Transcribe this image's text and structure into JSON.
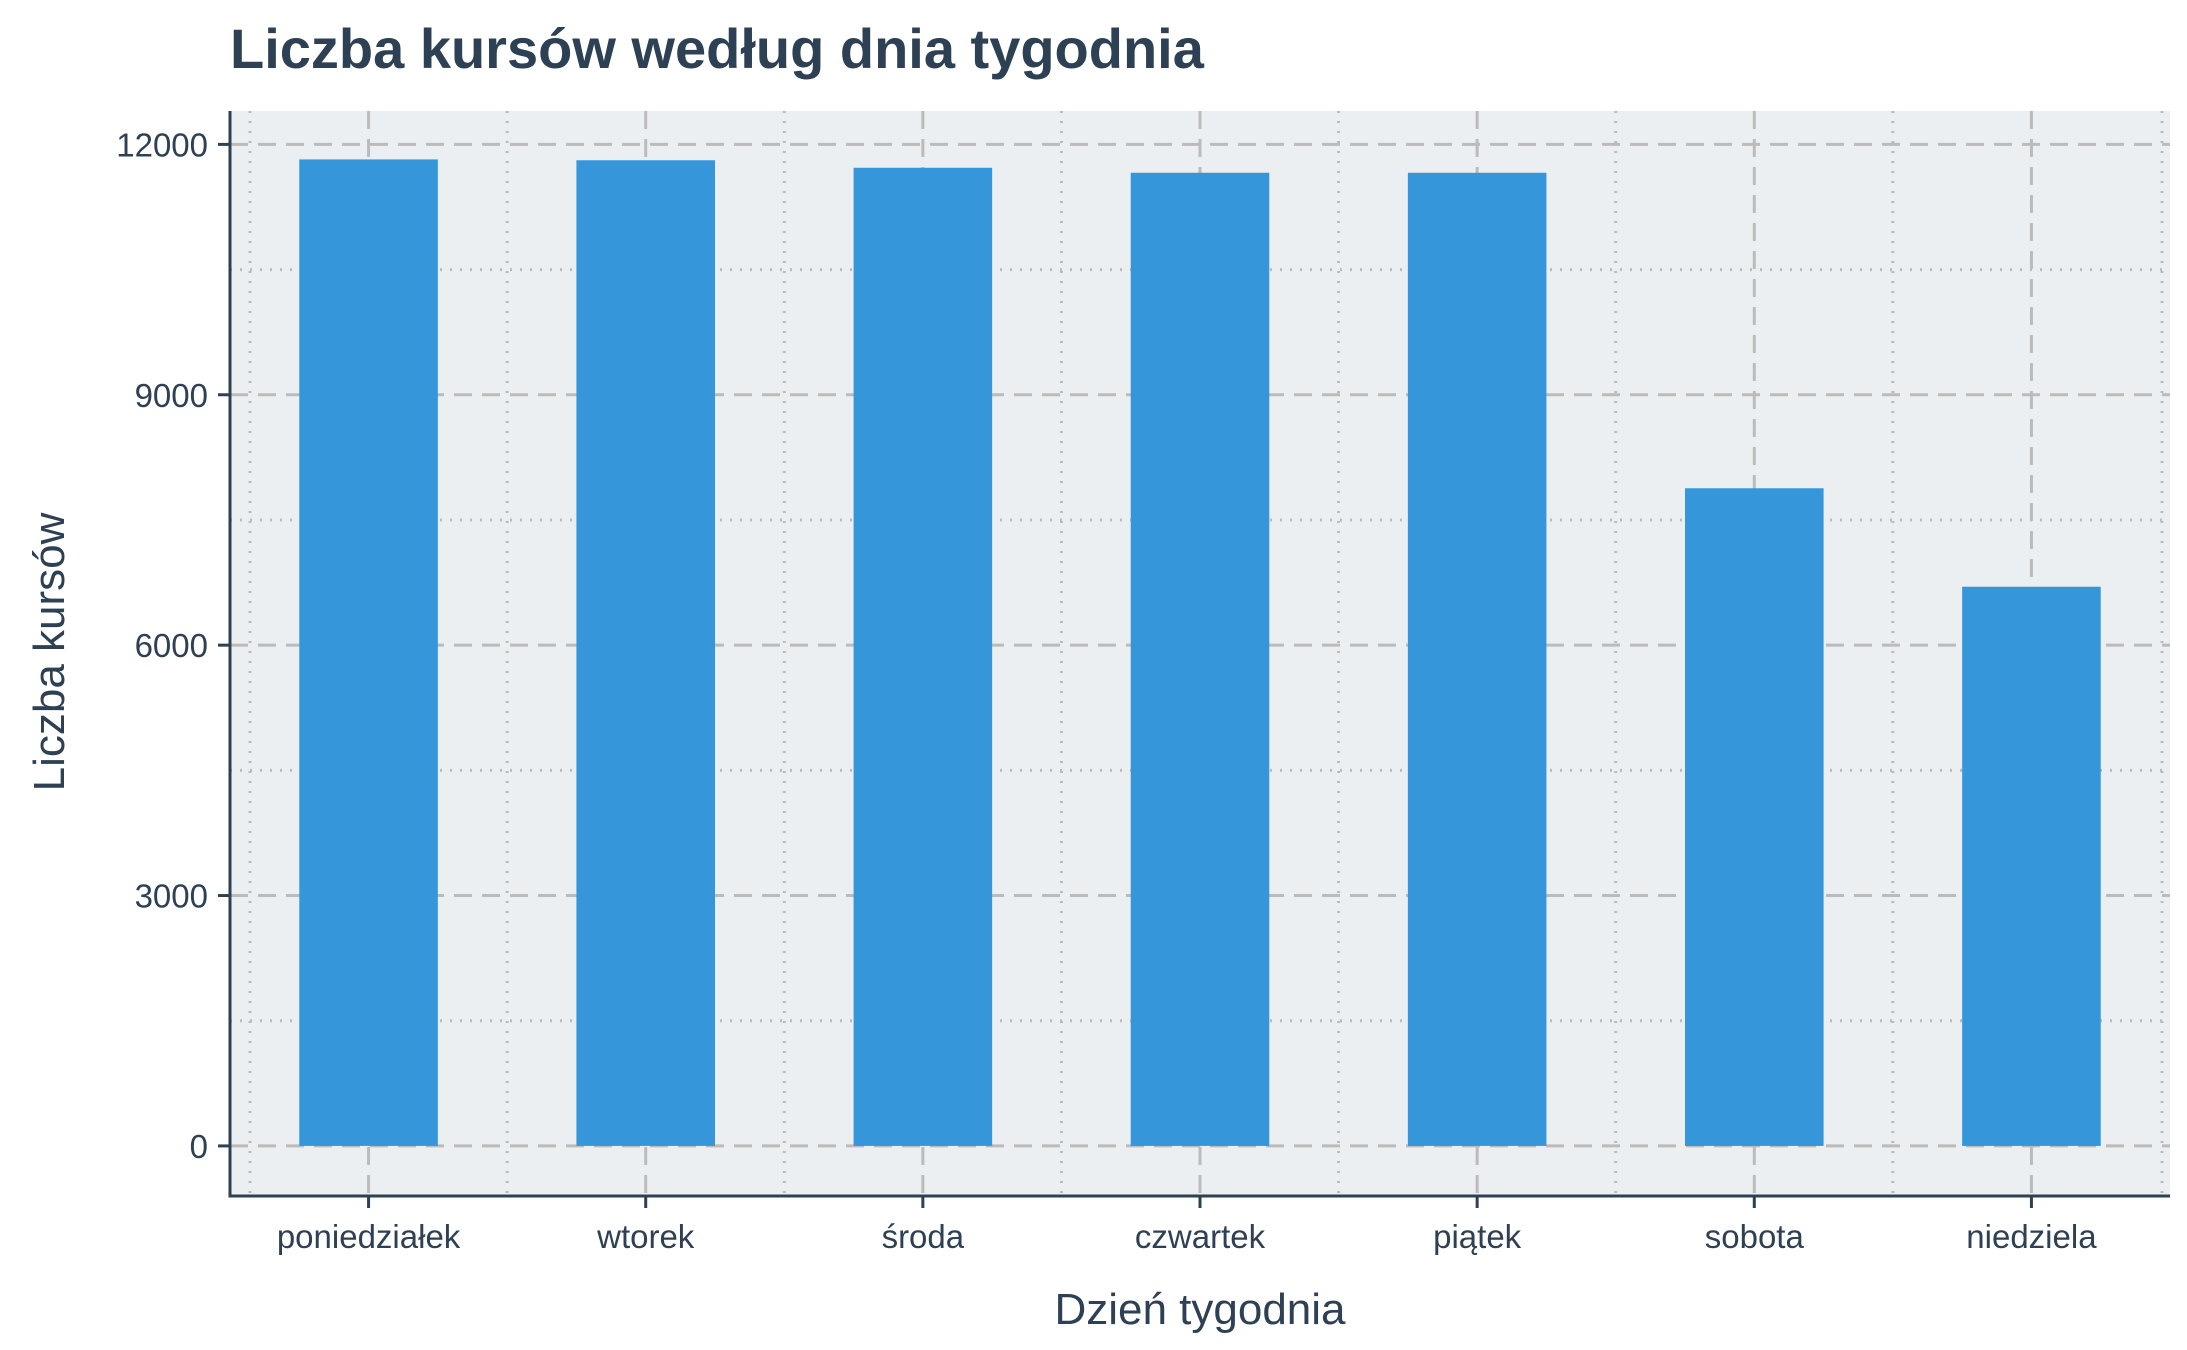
{
  "chart_data": {
    "type": "bar",
    "title": "Liczba kursów według dnia tygodnia",
    "xlabel": "Dzień tygodnia",
    "ylabel": "Liczba kursów",
    "categories": [
      "poniedziałek",
      "wtorek",
      "środa",
      "czwartek",
      "piątek",
      "sobota",
      "niedziela"
    ],
    "values": [
      11820,
      11810,
      11720,
      11660,
      11660,
      7880,
      6700
    ],
    "ylim": [
      -600,
      12400
    ],
    "yticks": [
      0,
      3000,
      6000,
      9000,
      12000
    ],
    "ytick_labels": [
      "0",
      "3000",
      "6000",
      "9000",
      "12000"
    ],
    "grid": "major dashed, minor dotted",
    "legend": "none",
    "colors": {
      "bar": "#3597da",
      "panel_background": "#eceff1",
      "text": "#2e4053",
      "axis_line": "#2e4053",
      "grid": "#bbbbbb"
    }
  }
}
